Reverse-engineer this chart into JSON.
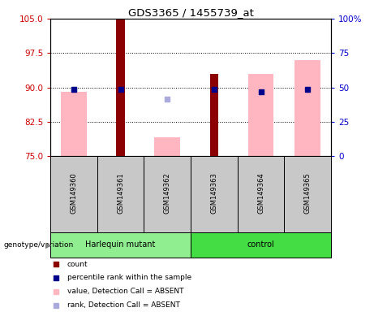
{
  "title": "GDS3365 / 1455739_at",
  "samples": [
    "GSM149360",
    "GSM149361",
    "GSM149362",
    "GSM149363",
    "GSM149364",
    "GSM149365"
  ],
  "group_labels": [
    "Harlequin mutant",
    "control"
  ],
  "ylim_left": [
    75,
    105
  ],
  "ylim_right": [
    0,
    100
  ],
  "yticks_left": [
    75,
    82.5,
    90,
    97.5,
    105
  ],
  "yticks_right": [
    0,
    25,
    50,
    75,
    100
  ],
  "hlines": [
    82.5,
    90,
    97.5
  ],
  "count_color": "#8B0000",
  "rank_color": "#00008B",
  "value_absent_color": "#FFB6C1",
  "rank_absent_color": "#AAAADD",
  "count_values": [
    null,
    105,
    null,
    93,
    null,
    null
  ],
  "rank_values": [
    89.5,
    89.5,
    null,
    89.5,
    89.0,
    89.5
  ],
  "value_absent": [
    89,
    null,
    79,
    null,
    93,
    96
  ],
  "rank_absent": [
    89.5,
    null,
    87.5,
    null,
    null,
    null
  ],
  "left_color": "#CC0000",
  "right_color": "#0000CC",
  "background_label": "#C8C8C8",
  "group1_color": "#90EE90",
  "group2_color": "#44DD44",
  "pink_bar_width": 0.55,
  "red_bar_width": 0.18,
  "legend_items": [
    {
      "color": "#8B0000",
      "label": "count"
    },
    {
      "color": "#00008B",
      "label": "percentile rank within the sample"
    },
    {
      "color": "#FFB6C1",
      "label": "value, Detection Call = ABSENT"
    },
    {
      "color": "#AAAADD",
      "label": "rank, Detection Call = ABSENT"
    }
  ]
}
